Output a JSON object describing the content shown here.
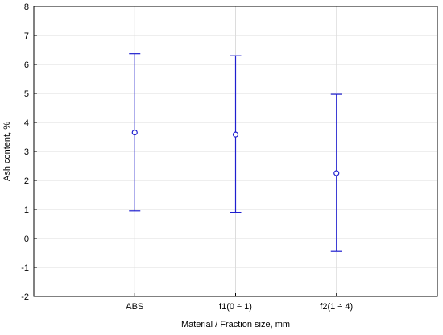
{
  "chart_data": {
    "type": "scatter",
    "subtype": "error-bar",
    "title": "",
    "xlabel": "Material / Fraction size, mm",
    "ylabel": "Ash content, %",
    "ylim": [
      -2,
      8
    ],
    "yticks": [
      -2,
      -1,
      0,
      1,
      2,
      3,
      4,
      5,
      6,
      7,
      8
    ],
    "grid": true,
    "categories": [
      "ABS",
      "f1(0 ÷ 1)",
      "f2(1 ÷ 4)"
    ],
    "means": [
      3.65,
      3.58,
      2.25
    ],
    "lower": [
      0.95,
      0.9,
      -0.45
    ],
    "upper": [
      6.37,
      6.3,
      4.97
    ],
    "color": "#1f1fcf"
  }
}
